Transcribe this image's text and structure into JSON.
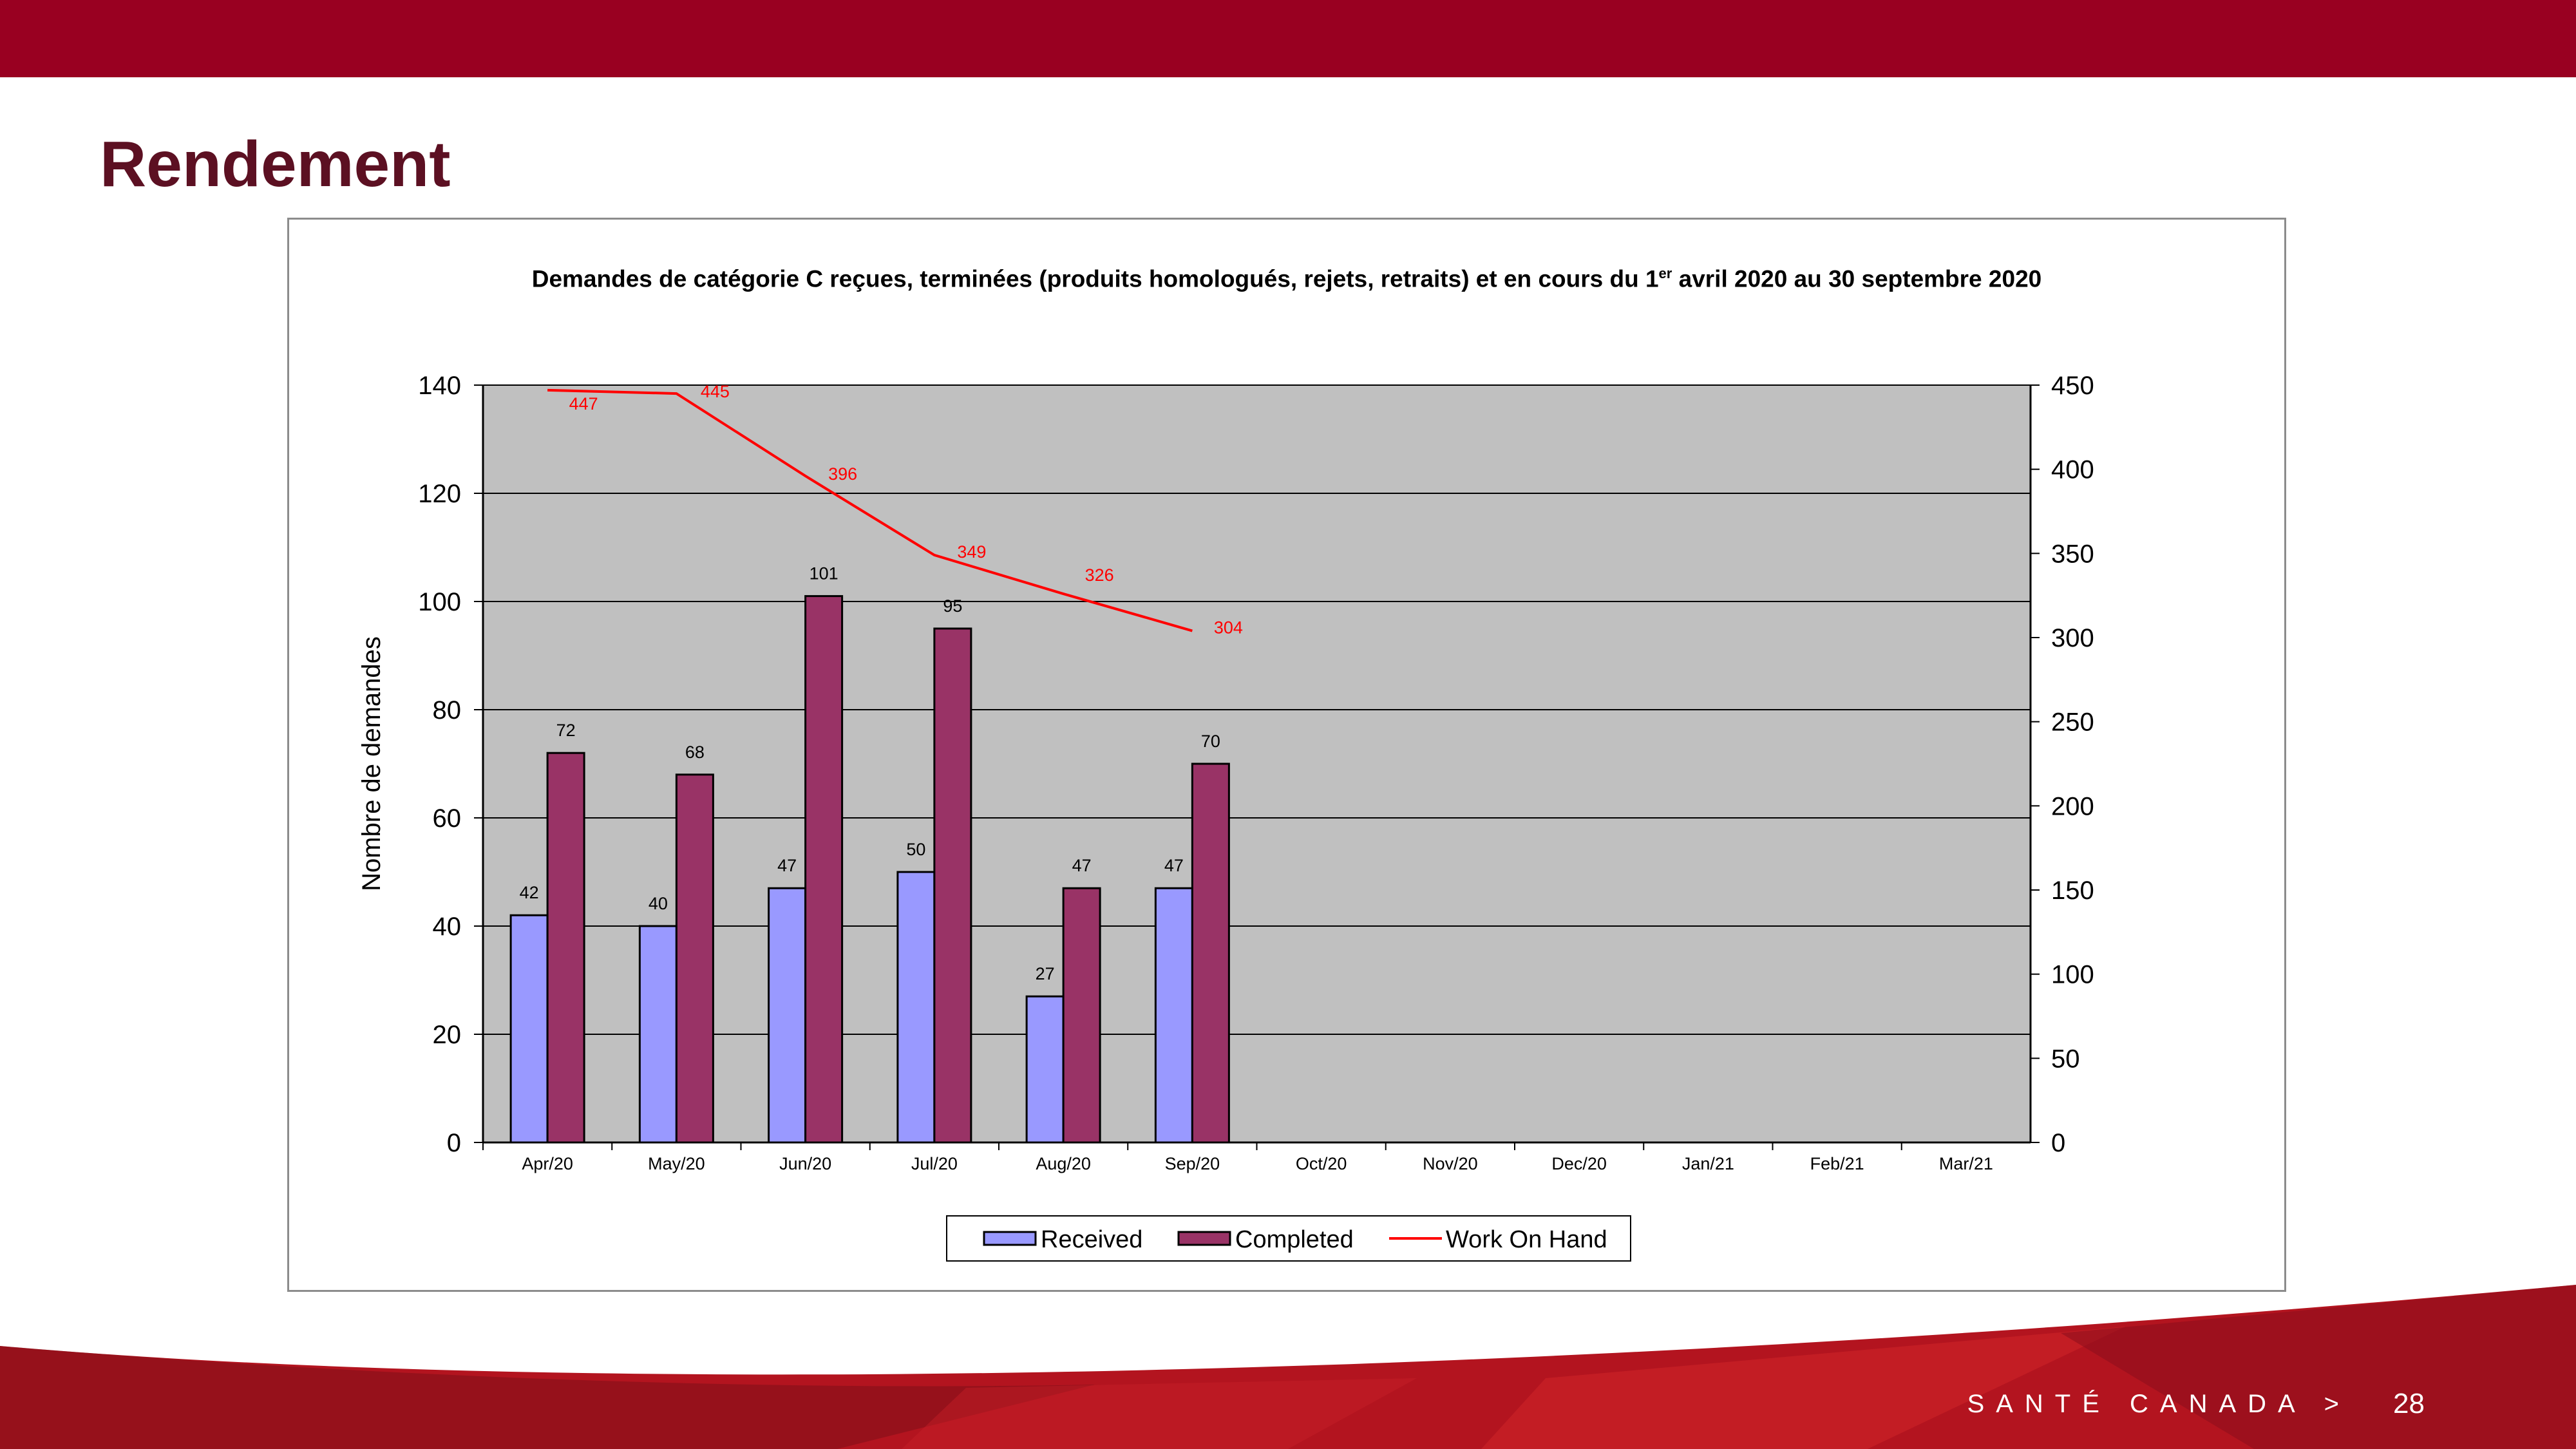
{
  "slide": {
    "title": "Rendement",
    "brand": "SANTÉ CANADA >",
    "page_number": "28"
  },
  "colors": {
    "top_band": "#990021",
    "title": "#5c1022",
    "received": "#9999ff",
    "completed": "#993366",
    "work_on_hand": "#ff0000",
    "plot_bg": "#c0c0c0"
  },
  "chart_data": {
    "type": "bar",
    "title_before_sup": "Demandes de catégorie C reçues, terminées (produits homologués, rejets, retraits) et en cours du 1",
    "title_sup": "er",
    "title_after_sup": " avril 2020 au 30  septembre 2020",
    "ylabel": "Nombre de demandes",
    "categories": [
      "Apr/20",
      "May/20",
      "Jun/20",
      "Jul/20",
      "Aug/20",
      "Sep/20",
      "Oct/20",
      "Nov/20",
      "Dec/20",
      "Jan/21",
      "Feb/21",
      "Mar/21"
    ],
    "ylim": [
      0,
      140
    ],
    "yticks": [
      0,
      20,
      40,
      60,
      80,
      100,
      120,
      140
    ],
    "y2lim": [
      0,
      450
    ],
    "y2ticks": [
      0,
      50,
      100,
      150,
      200,
      250,
      300,
      350,
      400,
      450
    ],
    "grid": true,
    "legend_position": "bottom-center",
    "series": [
      {
        "name": "Received",
        "type": "bar",
        "axis": "left",
        "values": [
          42,
          40,
          47,
          50,
          27,
          47,
          null,
          null,
          null,
          null,
          null,
          null
        ]
      },
      {
        "name": "Completed",
        "type": "bar",
        "axis": "left",
        "values": [
          72,
          68,
          101,
          95,
          47,
          70,
          null,
          null,
          null,
          null,
          null,
          null
        ]
      },
      {
        "name": "Work On Hand",
        "type": "line",
        "axis": "right",
        "values": [
          447,
          445,
          396,
          349,
          326,
          304,
          null,
          null,
          null,
          null,
          null,
          null
        ]
      }
    ]
  }
}
